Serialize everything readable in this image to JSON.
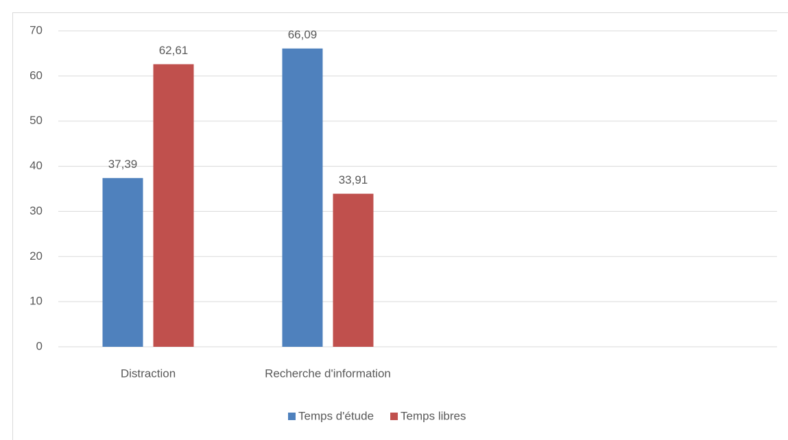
{
  "chart_data": {
    "type": "bar",
    "categories": [
      "Distraction",
      "Recherche d'information",
      null,
      null
    ],
    "series": [
      {
        "name": "Temps d'étude",
        "color": "#4f81bd",
        "values": [
          37.39,
          66.09,
          null,
          null
        ],
        "value_labels": [
          "37,39",
          "66,09",
          null,
          null
        ]
      },
      {
        "name": "Temps libres",
        "color": "#c0504d",
        "values": [
          62.61,
          33.91,
          null,
          null
        ],
        "value_labels": [
          "62,61",
          "33,91",
          null,
          null
        ]
      }
    ],
    "ylim": [
      0,
      70
    ],
    "yticks": [
      0,
      10,
      20,
      30,
      40,
      50,
      60,
      70
    ],
    "grid": true,
    "legend": "bottom"
  }
}
